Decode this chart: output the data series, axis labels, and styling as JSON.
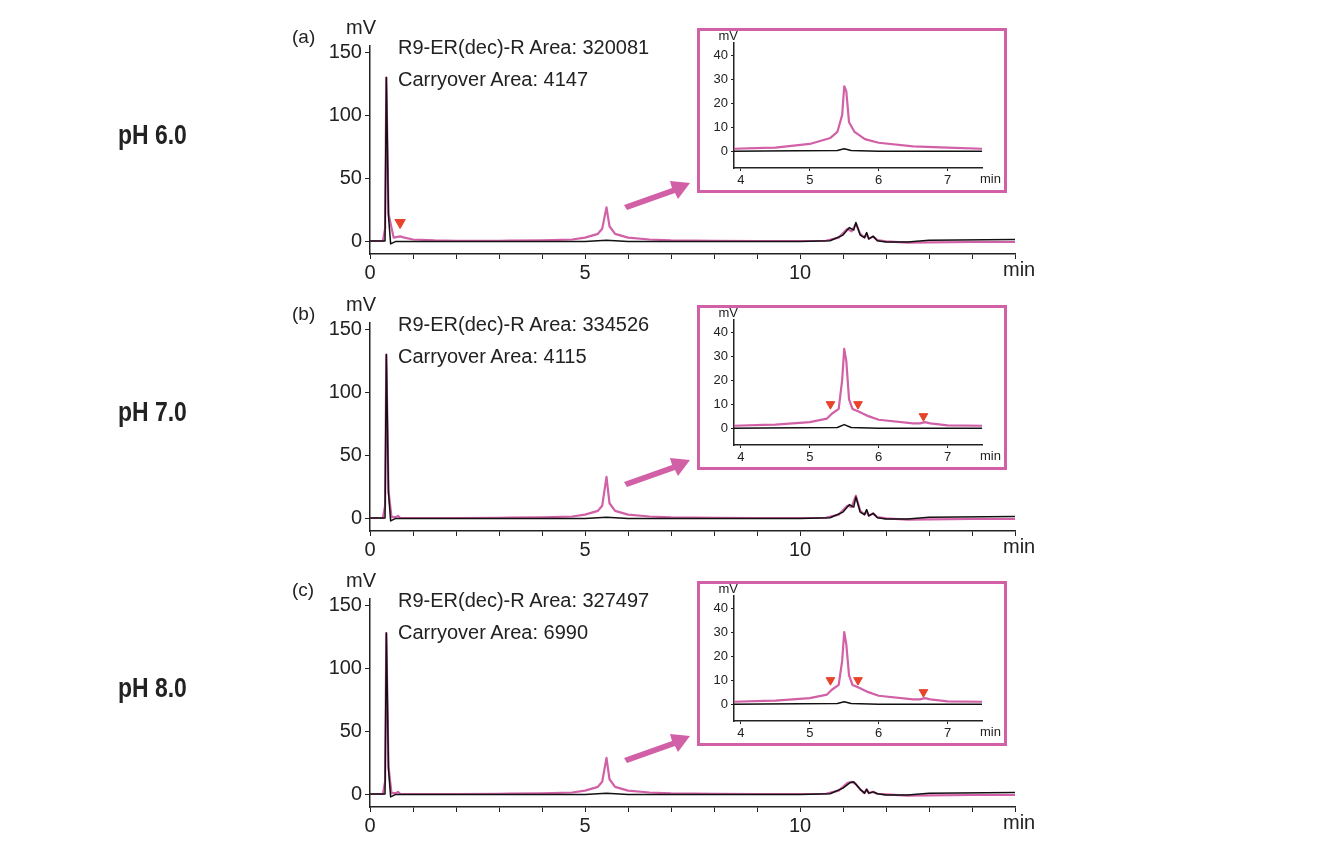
{
  "chart_data": [
    {
      "type": "line",
      "title": "pH 6.0",
      "subtitle": "(a)",
      "ylabel": "mV",
      "xlabel": "min",
      "annotations": [
        "R9-ER(dec)-R Area: 320081",
        "Carryover Area: 4147"
      ],
      "xlim": [
        0,
        15
      ],
      "ylim": [
        -10,
        155
      ],
      "xticks": [
        0,
        {
          "value": 1,
          "label": null
        },
        {
          "value": 2,
          "label": null
        },
        {
          "value": 3,
          "label": null
        },
        {
          "value": 4,
          "label": null
        },
        5,
        {
          "value": 6,
          "label": null
        },
        {
          "value": 7,
          "label": null
        },
        {
          "value": 8,
          "label": null
        },
        {
          "value": 9,
          "label": null
        },
        10,
        {
          "value": 11,
          "label": null
        },
        {
          "value": 12,
          "label": null
        },
        {
          "value": 13,
          "label": null
        },
        {
          "value": 14,
          "label": null
        },
        {
          "value": 15,
          "label": null
        }
      ],
      "yticks": [
        0,
        50,
        100,
        150
      ],
      "grid": false,
      "legend": false,
      "series": [
        {
          "color": "#d260a6",
          "x": [
            0,
            0.3,
            0.35,
            0.38,
            0.43,
            0.55,
            0.7,
            0.8,
            1,
            1.5,
            2,
            3,
            4,
            4.7,
            5,
            5.3,
            5.4,
            5.5,
            5.57,
            5.7,
            6,
            6.5,
            7,
            8,
            9,
            10,
            10.6,
            10.9,
            11.1,
            11.2,
            11.3,
            11.4,
            11.5,
            11.55,
            11.6,
            11.7,
            11.8,
            12,
            12.5,
            13,
            14,
            15
          ],
          "values": [
            0.3,
            0.3,
            10,
            130,
            22,
            3,
            4,
            3,
            1.5,
            0.8,
            0.5,
            0.5,
            0.8,
            1.5,
            3,
            6,
            10,
            27,
            12,
            6,
            3,
            1.5,
            0.8,
            0.5,
            0.3,
            0.3,
            0.5,
            3,
            10,
            8,
            14,
            6,
            3,
            6,
            2,
            4,
            1,
            0,
            -1,
            -0.8,
            -0.5,
            -0.5
          ]
        },
        {
          "color": "#111111",
          "x": [
            0,
            0.35,
            0.38,
            0.43,
            0.48,
            0.6,
            1,
            5,
            5.5,
            6,
            10,
            10.7,
            11,
            11.15,
            11.25,
            11.3,
            11.4,
            11.5,
            11.55,
            11.6,
            11.7,
            11.8,
            12,
            12.5,
            13,
            15
          ],
          "values": [
            0.3,
            0.3,
            130,
            20,
            -2,
            0,
            0,
            0,
            1,
            0,
            0,
            0.5,
            5,
            11,
            9,
            15,
            5,
            3,
            7,
            2,
            4,
            0.5,
            -0.5,
            -0.5,
            1,
            1.5
          ]
        },
        {
          "type": "scatter",
          "marker": "triangle",
          "color": "#e8432b",
          "x": [
            0.7
          ],
          "values": [
            15
          ]
        }
      ]
    },
    {
      "type": "line",
      "ylabel": "mV",
      "xlabel": "min",
      "xlim": [
        3.9,
        7.5
      ],
      "ylim": [
        -7,
        45
      ],
      "xticks": [
        4,
        5,
        6,
        7
      ],
      "yticks": [
        0,
        10,
        20,
        30,
        40
      ],
      "grid": false,
      "legend": false,
      "series": [
        {
          "color": "#d260a6",
          "x": [
            3.9,
            4.5,
            5,
            5.3,
            5.4,
            5.47,
            5.5,
            5.53,
            5.57,
            5.65,
            5.8,
            6,
            6.5,
            7,
            7.5
          ],
          "values": [
            1,
            1.5,
            3,
            5.5,
            8,
            15,
            27,
            25,
            12,
            8,
            5,
            3.5,
            2,
            1.5,
            1
          ]
        },
        {
          "color": "#111111",
          "x": [
            3.9,
            5.4,
            5.5,
            5.6,
            6,
            7.5
          ],
          "values": [
            0,
            0.3,
            1,
            0.3,
            0,
            0
          ]
        }
      ]
    },
    {
      "type": "line",
      "title": "pH 7.0",
      "subtitle": "(b)",
      "ylabel": "mV",
      "xlabel": "min",
      "annotations": [
        "R9-ER(dec)-R Area: 334526",
        "Carryover Area: 4115"
      ],
      "xlim": [
        0,
        15
      ],
      "ylim": [
        -10,
        155
      ],
      "xticks": [
        0,
        {
          "value": 1,
          "label": null
        },
        {
          "value": 2,
          "label": null
        },
        {
          "value": 3,
          "label": null
        },
        {
          "value": 4,
          "label": null
        },
        5,
        {
          "value": 6,
          "label": null
        },
        {
          "value": 7,
          "label": null
        },
        {
          "value": 8,
          "label": null
        },
        {
          "value": 9,
          "label": null
        },
        10,
        {
          "value": 11,
          "label": null
        },
        {
          "value": 12,
          "label": null
        },
        {
          "value": 13,
          "label": null
        },
        {
          "value": 14,
          "label": null
        },
        {
          "value": 15,
          "label": null
        }
      ],
      "yticks": [
        0,
        50,
        100,
        150
      ],
      "grid": false,
      "legend": false,
      "series": [
        {
          "color": "#d260a6",
          "x": [
            0,
            0.3,
            0.35,
            0.38,
            0.43,
            0.5,
            0.6,
            0.65,
            0.7,
            1,
            2,
            3,
            4,
            4.7,
            5,
            5.3,
            5.4,
            5.5,
            5.57,
            5.7,
            6,
            6.5,
            7,
            8,
            9,
            10,
            10.6,
            10.9,
            11.1,
            11.2,
            11.3,
            11.4,
            11.5,
            11.55,
            11.6,
            11.7,
            11.8,
            12,
            12.5,
            13,
            14,
            15
          ],
          "values": [
            0.3,
            0.3,
            10,
            130,
            22,
            1,
            1,
            2,
            0.5,
            0.3,
            0.3,
            0.5,
            0.8,
            1.5,
            3,
            6,
            10,
            33,
            12,
            6,
            3,
            1.5,
            0.8,
            0.5,
            0.3,
            0.3,
            0.5,
            3,
            10,
            9,
            18,
            6,
            3,
            6,
            2,
            4,
            1,
            0,
            -1,
            -0.8,
            -0.5,
            -0.5
          ]
        },
        {
          "color": "#111111",
          "x": [
            0,
            0.35,
            0.38,
            0.43,
            0.48,
            0.6,
            1,
            5,
            5.5,
            6,
            10,
            10.7,
            11,
            11.15,
            11.25,
            11.3,
            11.4,
            11.5,
            11.55,
            11.6,
            11.7,
            11.8,
            12,
            12.5,
            13,
            15
          ],
          "values": [
            0.3,
            0.3,
            130,
            20,
            -2,
            0,
            0,
            0,
            1,
            0,
            0,
            0.5,
            5,
            11,
            9,
            17,
            5,
            3,
            7,
            2,
            4,
            0.5,
            -0.5,
            -0.5,
            1,
            1.5
          ]
        }
      ]
    },
    {
      "type": "line",
      "ylabel": "mV",
      "xlabel": "min",
      "xlim": [
        3.9,
        7.5
      ],
      "ylim": [
        -7,
        45
      ],
      "xticks": [
        4,
        5,
        6,
        7
      ],
      "yticks": [
        0,
        10,
        20,
        30,
        40
      ],
      "grid": false,
      "legend": false,
      "series": [
        {
          "color": "#d260a6",
          "x": [
            3.9,
            4.5,
            5,
            5.25,
            5.32,
            5.42,
            5.47,
            5.5,
            5.53,
            5.57,
            5.62,
            5.7,
            5.85,
            6,
            6.5,
            6.6,
            6.67,
            6.75,
            7,
            7.5
          ],
          "values": [
            1,
            1.5,
            2.5,
            4,
            6,
            8,
            20,
            33,
            28,
            12,
            8,
            7,
            5,
            3.5,
            2,
            2,
            2.5,
            2,
            1.2,
            1
          ]
        },
        {
          "color": "#111111",
          "x": [
            3.9,
            5.4,
            5.5,
            5.6,
            6,
            7.5
          ],
          "values": [
            0,
            0.3,
            1.5,
            0.3,
            0,
            0
          ]
        },
        {
          "type": "scatter",
          "marker": "triangle",
          "color": "#e8432b",
          "x": [
            5.3,
            5.7,
            6.65
          ],
          "values": [
            10,
            10,
            5
          ]
        }
      ]
    },
    {
      "type": "line",
      "title": "pH 8.0",
      "subtitle": "(c)",
      "ylabel": "mV",
      "xlabel": "min",
      "annotations": [
        "R9-ER(dec)-R Area: 327497",
        "Carryover Area: 6990"
      ],
      "xlim": [
        0,
        15
      ],
      "ylim": [
        -10,
        155
      ],
      "xticks": [
        0,
        {
          "value": 1,
          "label": null
        },
        {
          "value": 2,
          "label": null
        },
        {
          "value": 3,
          "label": null
        },
        {
          "value": 4,
          "label": null
        },
        5,
        {
          "value": 6,
          "label": null
        },
        {
          "value": 7,
          "label": null
        },
        {
          "value": 8,
          "label": null
        },
        {
          "value": 9,
          "label": null
        },
        10,
        {
          "value": 11,
          "label": null
        },
        {
          "value": 12,
          "label": null
        },
        {
          "value": 13,
          "label": null
        },
        {
          "value": 14,
          "label": null
        },
        {
          "value": 15,
          "label": null
        }
      ],
      "yticks": [
        0,
        50,
        100,
        150
      ],
      "grid": false,
      "legend": false,
      "series": [
        {
          "color": "#d260a6",
          "x": [
            0,
            0.3,
            0.35,
            0.38,
            0.43,
            0.5,
            0.6,
            0.65,
            0.7,
            1,
            2,
            3,
            4,
            4.7,
            5,
            5.3,
            5.4,
            5.5,
            5.57,
            5.7,
            6,
            6.5,
            7,
            8,
            9,
            10,
            10.6,
            10.9,
            11.1,
            11.2,
            11.3,
            11.4,
            11.5,
            11.55,
            11.6,
            11.7,
            11.8,
            12,
            12.5,
            13,
            14,
            15
          ],
          "values": [
            0.3,
            0.3,
            10,
            128,
            22,
            1,
            1,
            2,
            0.5,
            0.3,
            0.3,
            0.5,
            0.8,
            1.5,
            3,
            6,
            10,
            29,
            12,
            6,
            3,
            1.5,
            0.8,
            0.5,
            0.3,
            0.3,
            0.5,
            3,
            9,
            10,
            8,
            4,
            1,
            4,
            1,
            2,
            0.5,
            0,
            -1,
            -0.8,
            -0.5,
            -0.5
          ]
        },
        {
          "color": "#111111",
          "x": [
            0,
            0.35,
            0.38,
            0.43,
            0.48,
            0.6,
            1,
            5,
            5.5,
            6,
            10,
            10.7,
            11,
            11.15,
            11.25,
            11.3,
            11.4,
            11.5,
            11.55,
            11.6,
            11.7,
            11.8,
            12,
            12.5,
            13,
            15
          ],
          "values": [
            0.3,
            0.3,
            128,
            20,
            -2,
            0,
            0,
            0,
            1,
            0,
            0,
            0.5,
            5,
            9,
            10,
            8,
            4,
            1,
            4,
            1,
            2,
            0.5,
            -0.5,
            -0.5,
            1,
            1.5
          ]
        }
      ]
    },
    {
      "type": "line",
      "ylabel": "mV",
      "xlabel": "min",
      "xlim": [
        3.9,
        7.5
      ],
      "ylim": [
        -7,
        45
      ],
      "xticks": [
        4,
        5,
        6,
        7
      ],
      "yticks": [
        0,
        10,
        20,
        30,
        40
      ],
      "grid": false,
      "legend": false,
      "series": [
        {
          "color": "#d260a6",
          "x": [
            3.9,
            4.5,
            5,
            5.25,
            5.32,
            5.42,
            5.47,
            5.5,
            5.53,
            5.57,
            5.62,
            5.7,
            5.85,
            6,
            6.5,
            6.6,
            6.67,
            6.75,
            7,
            7.5
          ],
          "values": [
            1,
            1.5,
            2.5,
            4,
            6,
            8,
            18,
            30,
            25,
            12,
            8,
            7,
            5,
            3.5,
            2,
            2,
            2.5,
            2,
            1.2,
            1
          ]
        },
        {
          "color": "#111111",
          "x": [
            3.9,
            5.4,
            5.5,
            5.6,
            6,
            7.5
          ],
          "values": [
            0,
            0.3,
            1,
            0.3,
            0,
            0
          ]
        },
        {
          "type": "scatter",
          "marker": "triangle",
          "color": "#e8432b",
          "x": [
            5.3,
            5.7,
            6.65
          ],
          "values": [
            10,
            10,
            5
          ]
        }
      ]
    }
  ]
}
